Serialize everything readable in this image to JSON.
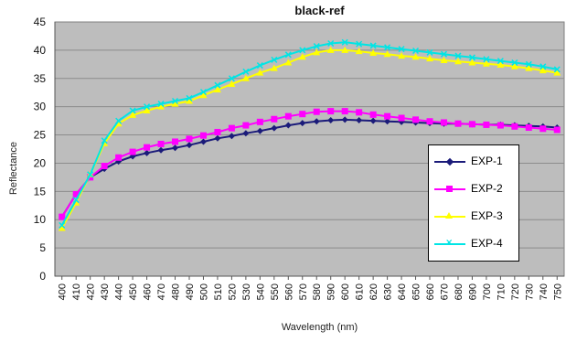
{
  "chart_data": {
    "type": "line",
    "title": "black-ref",
    "xlabel": "Wavelength (nm)",
    "ylabel": "Reflectance",
    "x": [
      400,
      410,
      420,
      430,
      440,
      450,
      460,
      470,
      480,
      490,
      500,
      510,
      520,
      530,
      540,
      550,
      560,
      570,
      580,
      590,
      600,
      610,
      620,
      630,
      640,
      650,
      660,
      670,
      680,
      690,
      700,
      710,
      720,
      730,
      740,
      750
    ],
    "ylim": [
      0,
      45
    ],
    "yticks": [
      "0",
      "5",
      "10",
      "15",
      "20",
      "25",
      "30",
      "35",
      "40",
      "45"
    ],
    "grid": true,
    "legend_position": "right",
    "series": [
      {
        "name": "EXP-1",
        "color": "#1b1b7a",
        "marker": "diamond",
        "values": [
          10.5,
          14.5,
          17.5,
          19.0,
          20.3,
          21.2,
          21.8,
          22.3,
          22.7,
          23.2,
          23.8,
          24.4,
          24.8,
          25.3,
          25.7,
          26.2,
          26.7,
          27.1,
          27.4,
          27.6,
          27.7,
          27.6,
          27.5,
          27.4,
          27.3,
          27.2,
          27.1,
          27.0,
          27.0,
          26.9,
          26.8,
          26.8,
          26.7,
          26.6,
          26.5,
          26.3
        ]
      },
      {
        "name": "EXP-2",
        "color": "#ff00ff",
        "marker": "square",
        "values": [
          10.5,
          14.5,
          17.5,
          19.5,
          21.0,
          22.0,
          22.8,
          23.4,
          23.8,
          24.3,
          24.9,
          25.5,
          26.2,
          26.7,
          27.3,
          27.8,
          28.3,
          28.7,
          29.1,
          29.2,
          29.2,
          29.0,
          28.6,
          28.3,
          28.0,
          27.7,
          27.4,
          27.2,
          27.0,
          26.9,
          26.8,
          26.7,
          26.5,
          26.3,
          26.1,
          25.9
        ]
      },
      {
        "name": "EXP-3",
        "color": "#ffff00",
        "marker": "triangle",
        "values": [
          8.5,
          13.0,
          18.0,
          23.5,
          27.0,
          28.5,
          29.3,
          30.0,
          30.5,
          31.0,
          32.0,
          33.0,
          34.0,
          35.0,
          36.0,
          36.8,
          37.8,
          38.8,
          39.6,
          40.0,
          40.0,
          39.8,
          39.5,
          39.3,
          39.0,
          38.8,
          38.5,
          38.2,
          38.0,
          37.8,
          37.6,
          37.4,
          37.1,
          36.8,
          36.4,
          36.0
        ]
      },
      {
        "name": "EXP-4",
        "color": "#00e5e5",
        "marker": "x",
        "values": [
          9.0,
          13.5,
          18.0,
          24.0,
          27.5,
          29.3,
          30.0,
          30.5,
          31.0,
          31.5,
          32.6,
          33.8,
          35.0,
          36.2,
          37.3,
          38.3,
          39.2,
          40.0,
          40.7,
          41.2,
          41.4,
          41.1,
          40.8,
          40.5,
          40.2,
          39.9,
          39.6,
          39.3,
          39.0,
          38.7,
          38.4,
          38.1,
          37.8,
          37.5,
          37.1,
          36.6
        ]
      }
    ]
  }
}
